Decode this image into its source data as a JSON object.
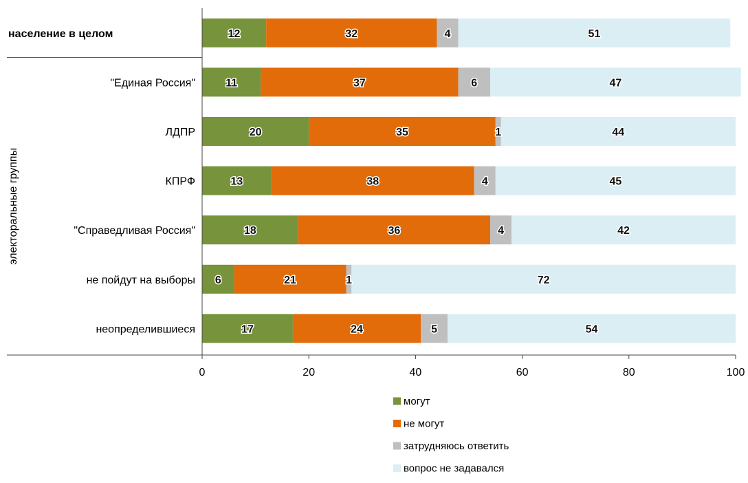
{
  "chart_data": {
    "type": "bar",
    "orientation": "horizontal",
    "stacked": true,
    "categories": [
      "население в целом",
      "\"Единая Россия\"",
      "ЛДПР",
      "КПРФ",
      "\"Справедливая Россия\"",
      "не пойдут на выборы",
      "неопределившиеся"
    ],
    "bold_categories": [
      "население в целом"
    ],
    "series": [
      {
        "name": "могут",
        "color": "#77933c",
        "values": [
          12,
          11,
          20,
          13,
          18,
          6,
          17
        ]
      },
      {
        "name": "не могут",
        "color": "#e36c0a",
        "values": [
          32,
          37,
          35,
          38,
          36,
          21,
          24
        ]
      },
      {
        "name": "затрудняюсь ответить",
        "color": "#bfbfbf",
        "values": [
          4,
          6,
          1,
          4,
          4,
          1,
          5
        ]
      },
      {
        "name": "вопрос не задавался",
        "color": "#dbeef4",
        "values": [
          51,
          47,
          44,
          45,
          42,
          72,
          54
        ]
      }
    ],
    "ylabel": "электоральные группы",
    "xlim": [
      0,
      100
    ],
    "xticks": [
      0,
      20,
      40,
      60,
      80,
      100
    ],
    "grid": false,
    "legend_position": "bottom"
  }
}
